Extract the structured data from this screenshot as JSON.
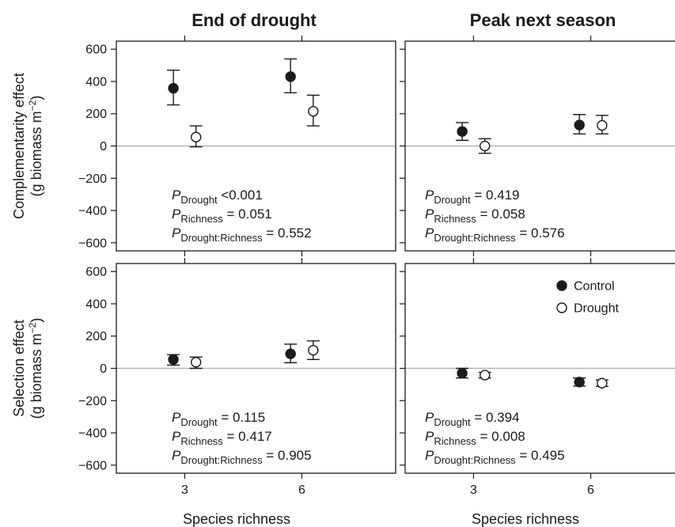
{
  "chart_data": {
    "type": "scatter",
    "column_titles": [
      "End of drought",
      "Peak next season"
    ],
    "row_ylabels": [
      {
        "line1": "Complementarity effect",
        "line2_pre": "(g biomass m",
        "line2_sup": "−2",
        "line2_post": ")"
      },
      {
        "line1": "Selection effect",
        "line2_pre": "(g biomass m",
        "line2_sup": "−2",
        "line2_post": ")"
      }
    ],
    "xlabel": "Species richness",
    "x_ticks": [
      3,
      6
    ],
    "y_ticks": [
      600,
      400,
      200,
      0,
      -200,
      -400,
      -600
    ],
    "y_tick_labels": [
      "600",
      "400",
      "200",
      "0",
      "−200",
      "−400",
      "−600"
    ],
    "ylim": [
      -650,
      650
    ],
    "legend": {
      "placement": "top-right of bottom-right panel",
      "entries": [
        {
          "label": "Control",
          "marker": "filled-circle"
        },
        {
          "label": "Drought",
          "marker": "open-circle"
        }
      ]
    },
    "panels": [
      {
        "row": 0,
        "col": 0,
        "series": [
          {
            "name": "Control",
            "points": [
              {
                "x": 3,
                "y": 358,
                "lo": 255,
                "hi": 470
              },
              {
                "x": 6,
                "y": 430,
                "lo": 330,
                "hi": 540
              }
            ]
          },
          {
            "name": "Drought",
            "points": [
              {
                "x": 3,
                "y": 55,
                "lo": -5,
                "hi": 125
              },
              {
                "x": 6,
                "y": 215,
                "lo": 125,
                "hi": 315
              }
            ]
          }
        ],
        "stats": [
          {
            "sub": "Drought",
            "text": " <0.001"
          },
          {
            "sub": "Richness",
            "text": " = 0.051"
          },
          {
            "sub": "Drought:Richness",
            "text": " = 0.552"
          }
        ]
      },
      {
        "row": 0,
        "col": 1,
        "series": [
          {
            "name": "Control",
            "points": [
              {
                "x": 3,
                "y": 90,
                "lo": 35,
                "hi": 145
              },
              {
                "x": 6,
                "y": 130,
                "lo": 75,
                "hi": 195
              }
            ]
          },
          {
            "name": "Drought",
            "points": [
              {
                "x": 3,
                "y": 0,
                "lo": -45,
                "hi": 45
              },
              {
                "x": 6,
                "y": 128,
                "lo": 75,
                "hi": 190
              }
            ]
          }
        ],
        "stats": [
          {
            "sub": "Drought",
            "text": " = 0.419"
          },
          {
            "sub": "Richness",
            "text": " = 0.058"
          },
          {
            "sub": "Drought:Richness",
            "text": " = 0.576"
          }
        ]
      },
      {
        "row": 1,
        "col": 0,
        "series": [
          {
            "name": "Control",
            "points": [
              {
                "x": 3,
                "y": 55,
                "lo": 20,
                "hi": 85
              },
              {
                "x": 6,
                "y": 90,
                "lo": 35,
                "hi": 150
              }
            ]
          },
          {
            "name": "Drought",
            "points": [
              {
                "x": 3,
                "y": 38,
                "lo": 0,
                "hi": 70
              },
              {
                "x": 6,
                "y": 112,
                "lo": 55,
                "hi": 170
              }
            ]
          }
        ],
        "stats": [
          {
            "sub": "Drought",
            "text": " = 0.115"
          },
          {
            "sub": "Richness",
            "text": " = 0.417"
          },
          {
            "sub": "Drought:Richness",
            "text": " = 0.905"
          }
        ]
      },
      {
        "row": 1,
        "col": 1,
        "series": [
          {
            "name": "Control",
            "points": [
              {
                "x": 3,
                "y": -30,
                "lo": -60,
                "hi": 0
              },
              {
                "x": 6,
                "y": -85,
                "lo": -110,
                "hi": -60
              }
            ]
          },
          {
            "name": "Drought",
            "points": [
              {
                "x": 3,
                "y": -42,
                "lo": -60,
                "hi": -25
              },
              {
                "x": 6,
                "y": -92,
                "lo": -112,
                "hi": -72
              }
            ]
          }
        ],
        "stats": [
          {
            "sub": "Drought",
            "text": " = 0.394"
          },
          {
            "sub": "Richness",
            "text": " = 0.008"
          },
          {
            "sub": "Drought:Richness",
            "text": " = 0.495"
          }
        ]
      }
    ],
    "zero_line": true
  }
}
